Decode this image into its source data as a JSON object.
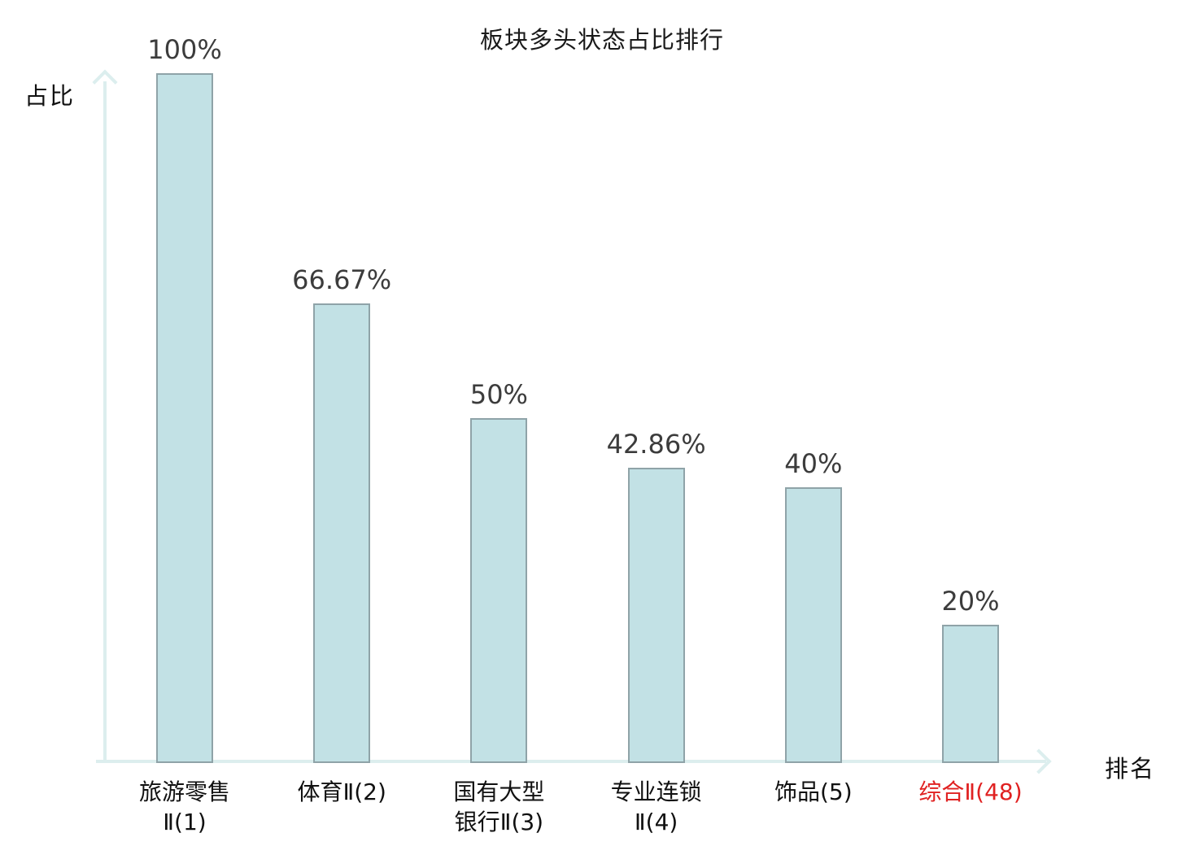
{
  "title": "板块多头状态占比排行",
  "y_axis_label": "占比",
  "x_axis_label": "排名",
  "colors": {
    "bar_fill": "#c2e1e5",
    "bar_border": "#8fa3a8",
    "axis": "#dceeee",
    "value_label": "#3c3c3c",
    "category_default": "#111111",
    "category_highlight": "#e02121",
    "title": "#1a1a1a",
    "background": "#ffffff"
  },
  "chart_data": {
    "type": "bar",
    "title": "板块多头状态占比排行",
    "xlabel": "排名",
    "ylabel": "占比",
    "categories": [
      "旅游零售Ⅱ(1)",
      "体育Ⅱ(2)",
      "国有大型银行Ⅱ(3)",
      "专业连锁Ⅱ(4)",
      "饰品(5)",
      "综合Ⅱ(48)"
    ],
    "category_display": [
      "旅游零售\nⅡ(1)",
      "体育Ⅱ(2)",
      "国有大型\n银行Ⅱ(3)",
      "专业连锁\nⅡ(4)",
      "饰品(5)",
      "综合Ⅱ(48)"
    ],
    "values": [
      100,
      66.67,
      50,
      42.86,
      40,
      20
    ],
    "value_labels": [
      "100%",
      "66.67%",
      "50%",
      "42.86%",
      "40%",
      "20%"
    ],
    "highlight_index": 5,
    "ylim": [
      0,
      100
    ],
    "grid": false,
    "legend": null,
    "axis_ticks_shown": false
  }
}
